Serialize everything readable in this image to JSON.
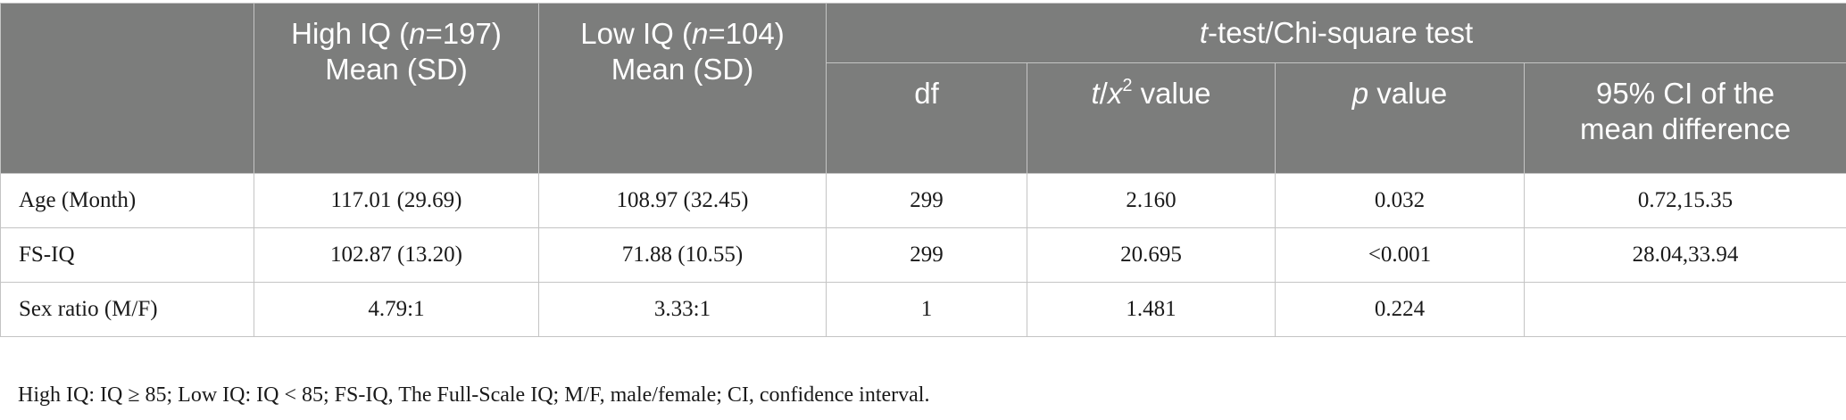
{
  "header": {
    "high_iq": {
      "prefix": "High IQ (",
      "n_italic": "n",
      "suffix": "=197)",
      "line2": "Mean (SD)"
    },
    "low_iq": {
      "prefix": "Low IQ (",
      "n_italic": "n",
      "suffix": "=104)",
      "line2": "Mean (SD)"
    },
    "test_group": {
      "t_italic": "t",
      "rest": "-test/Chi-square test"
    },
    "df": "df",
    "tval": {
      "t_italic": "t",
      "slash": "/",
      "x_italic": "x",
      "sup": "2",
      "rest": " value"
    },
    "pval": {
      "p_italic": "p",
      "rest": " value"
    },
    "ci": {
      "line1": "95% CI of the",
      "line2": "mean difference"
    }
  },
  "rows": [
    {
      "label": "Age (Month)",
      "high": "117.01 (29.69)",
      "low": "108.97 (32.45)",
      "df": "299",
      "t": "2.160",
      "p": "0.032",
      "ci": "0.72,15.35"
    },
    {
      "label": "FS-IQ",
      "high": "102.87 (13.20)",
      "low": "71.88 (10.55)",
      "df": "299",
      "t": "20.695",
      "p": "<0.001",
      "ci": "28.04,33.94"
    },
    {
      "label": "Sex ratio (M/F)",
      "high": "4.79:1",
      "low": "3.33:1",
      "df": "1",
      "t": "1.481",
      "p": "0.224",
      "ci": ""
    }
  ],
  "footnote": "High IQ: IQ ≥ 85; Low IQ: IQ < 85; FS-IQ, The Full-Scale IQ; M/F, male/female; CI, confidence interval."
}
